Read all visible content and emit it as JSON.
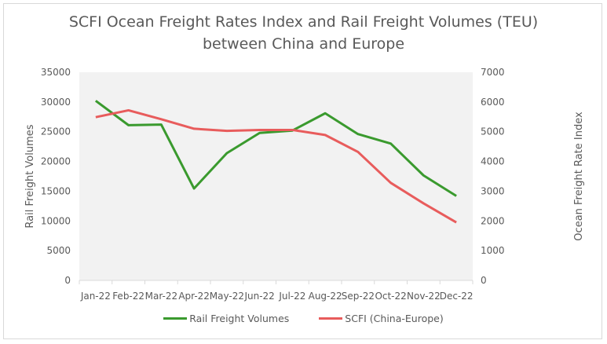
{
  "chart_data": {
    "type": "line",
    "title": "SCFI Ocean Freight Rates Index and Rail Freight Volumes (TEU) between China and Europe",
    "title_lines": [
      "SCFI Ocean Freight Rates Index and Rail Freight Volumes (TEU)",
      "between China and Europe"
    ],
    "categories": [
      "Jan-22",
      "Feb-22",
      "Mar-22",
      "Apr-22",
      "May-22",
      "Jun-22",
      "Jul-22",
      "Aug-22",
      "Sep-22",
      "Oct-22",
      "Nov-22",
      "Dec-22"
    ],
    "ylabel": "Rail Freight Volumes",
    "y2label": "Ocean Freight Rate Index",
    "ylim": [
      0,
      35000
    ],
    "y2lim": [
      0,
      7000
    ],
    "yticks": [
      0,
      5000,
      10000,
      15000,
      20000,
      25000,
      30000,
      35000
    ],
    "y2ticks": [
      0,
      1000,
      2000,
      3000,
      4000,
      5000,
      6000,
      7000
    ],
    "grid": false,
    "plot_background": "#f2f2f2",
    "legend_position": "bottom",
    "series": [
      {
        "name": "Rail Freight Volumes",
        "axis": "left",
        "color": "#3a9a2e",
        "values": [
          30200,
          26100,
          26200,
          15450,
          21400,
          24800,
          25200,
          28100,
          24600,
          23000,
          17650,
          14200
        ]
      },
      {
        "name": "SCFI (China-Europe)",
        "axis": "right",
        "color": "#e85c5c",
        "values": [
          5490,
          5720,
          5420,
          5100,
          5030,
          5060,
          5060,
          4890,
          4320,
          3280,
          2590,
          1950
        ]
      }
    ]
  }
}
